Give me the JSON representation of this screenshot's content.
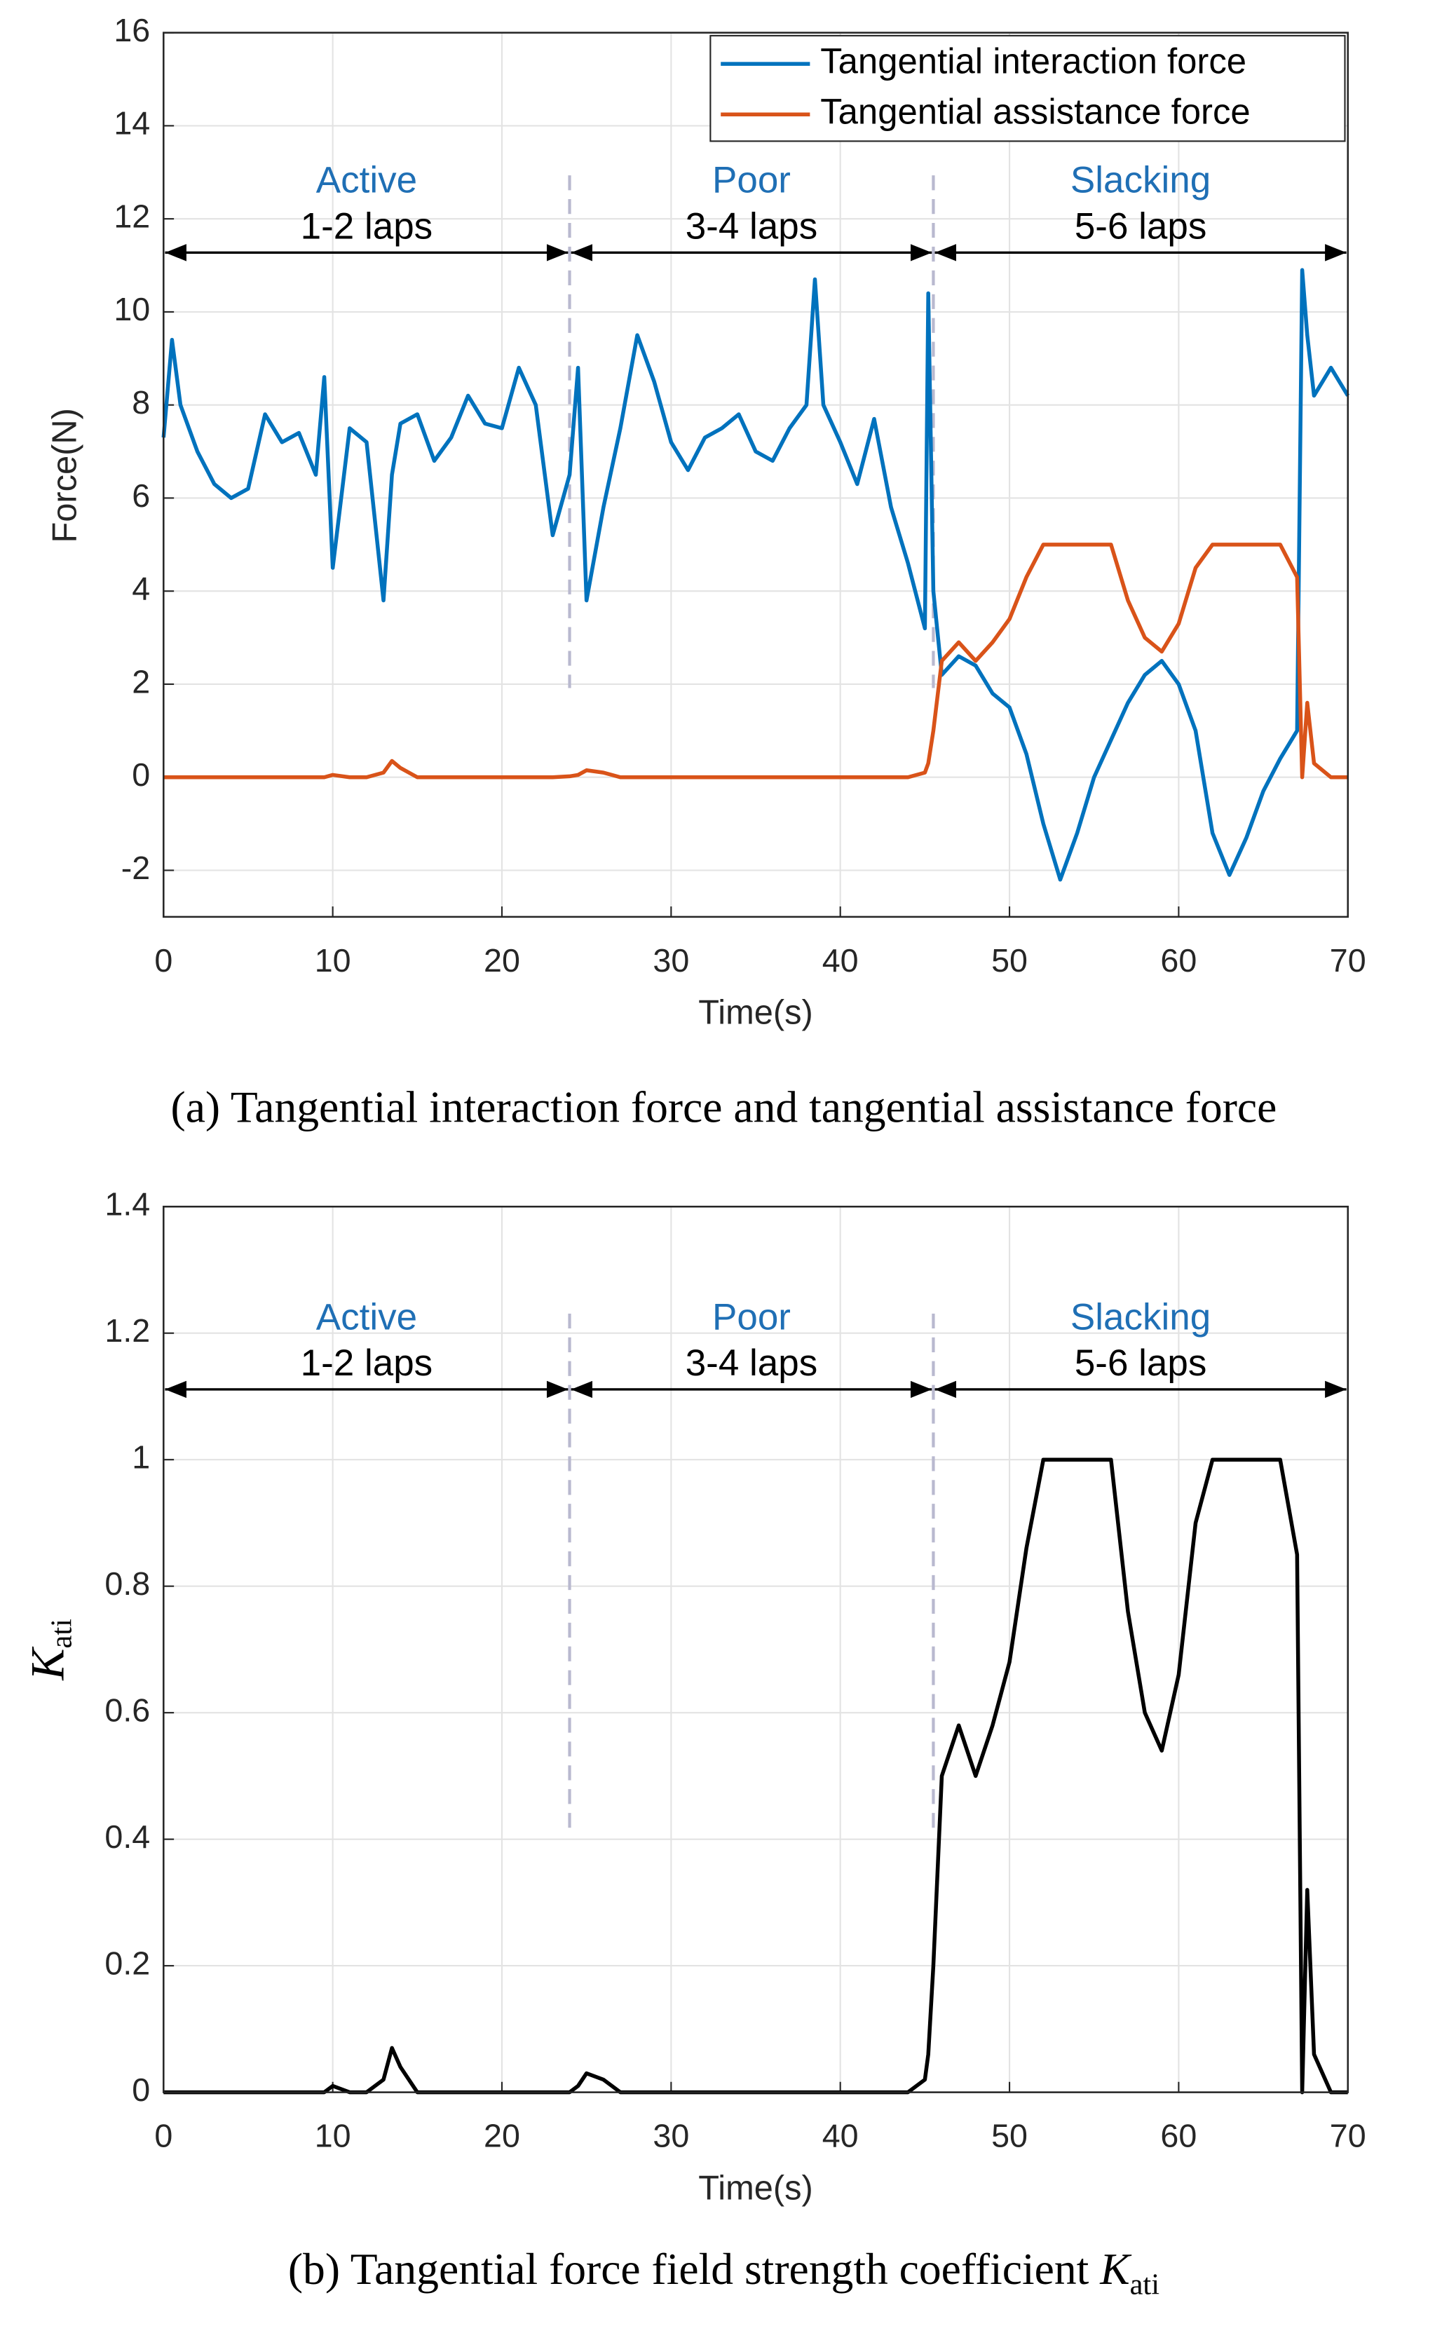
{
  "chart_data": [
    {
      "type": "line",
      "x": [
        0,
        0.5,
        1,
        2,
        3,
        4,
        5,
        6,
        7,
        8,
        9,
        9.5,
        10,
        11,
        12,
        13,
        13.5,
        14,
        15,
        16,
        17,
        18,
        19,
        20,
        21,
        22,
        23,
        24,
        24.5,
        25,
        26,
        27,
        28,
        29,
        30,
        31,
        32,
        33,
        34,
        35,
        36,
        37,
        38,
        38.5,
        39,
        40,
        41,
        42,
        43,
        44,
        45,
        45.2,
        45.5,
        46,
        47,
        48,
        49,
        50,
        51,
        52,
        53,
        54,
        55,
        56,
        57,
        58,
        59,
        60,
        61,
        62,
        63,
        64,
        65,
        66,
        67,
        67.3,
        67.6,
        68,
        69,
        70
      ],
      "series": [
        {
          "name": "Tangential interaction force",
          "color": "#0072bd",
          "values": [
            7.3,
            9.4,
            8.0,
            7.0,
            6.3,
            6.0,
            6.2,
            7.8,
            7.2,
            7.4,
            6.5,
            8.6,
            4.5,
            7.5,
            7.2,
            3.8,
            6.5,
            7.6,
            7.8,
            6.8,
            7.3,
            8.2,
            7.6,
            7.5,
            8.8,
            8.0,
            5.2,
            6.5,
            8.8,
            3.8,
            5.8,
            7.5,
            9.5,
            8.5,
            7.2,
            6.6,
            7.3,
            7.5,
            7.8,
            7.0,
            6.8,
            7.5,
            8.0,
            10.7,
            8.0,
            7.2,
            6.3,
            7.7,
            5.8,
            4.6,
            3.2,
            10.4,
            4.0,
            2.2,
            2.6,
            2.4,
            1.8,
            1.5,
            0.5,
            -1.0,
            -2.2,
            -1.2,
            0.0,
            0.8,
            1.6,
            2.2,
            2.5,
            2.0,
            1.0,
            -1.2,
            -2.1,
            -1.3,
            -0.3,
            0.4,
            1.0,
            10.9,
            9.5,
            8.2,
            8.8,
            8.2
          ]
        },
        {
          "name": "Tangential assistance force",
          "color": "#d95319",
          "values": [
            0,
            0,
            0,
            0,
            0,
            0,
            0,
            0,
            0,
            0,
            0,
            0,
            0.05,
            0,
            0,
            0.1,
            0.35,
            0.2,
            0,
            0,
            0,
            0,
            0,
            0,
            0,
            0,
            0,
            0.02,
            0.05,
            0.15,
            0.1,
            0,
            0,
            0,
            0,
            0,
            0,
            0,
            0,
            0,
            0,
            0,
            0,
            0,
            0,
            0,
            0,
            0,
            0,
            0,
            0.1,
            0.3,
            1.0,
            2.5,
            2.9,
            2.5,
            2.9,
            3.4,
            4.3,
            5.0,
            5.0,
            5.0,
            5.0,
            5.0,
            3.8,
            3.0,
            2.7,
            3.3,
            4.5,
            5.0,
            5.0,
            5.0,
            5.0,
            5.0,
            4.3,
            0.0,
            1.6,
            0.3,
            0,
            0
          ]
        }
      ],
      "xlim": [
        0,
        70
      ],
      "xticks": [
        0,
        10,
        20,
        30,
        40,
        50,
        60,
        70
      ],
      "ylim": [
        -3,
        16
      ],
      "yticks": [
        -2,
        0,
        2,
        4,
        6,
        8,
        10,
        12,
        14,
        16
      ],
      "x_label": "Time(s)",
      "y_label": "Force(N)",
      "grid": true,
      "legend": "upper right",
      "phases": [
        {
          "name": "Active",
          "laps": "1-2 laps",
          "start": 0,
          "end": 24
        },
        {
          "name": "Poor",
          "laps": "3-4 laps",
          "start": 24,
          "end": 45.5
        },
        {
          "name": "Slacking",
          "laps": "5-6 laps",
          "start": 45.5,
          "end": 70
        }
      ],
      "caption": "(a) Tangential interaction force and tangential assistance force"
    },
    {
      "type": "line",
      "x": [
        0,
        0.5,
        1,
        2,
        3,
        4,
        5,
        6,
        7,
        8,
        9,
        9.5,
        10,
        11,
        12,
        13,
        13.5,
        14,
        15,
        16,
        17,
        18,
        19,
        20,
        21,
        22,
        23,
        24,
        24.5,
        25,
        26,
        27,
        28,
        29,
        30,
        31,
        32,
        33,
        34,
        35,
        36,
        37,
        38,
        38.5,
        39,
        40,
        41,
        42,
        43,
        44,
        45,
        45.2,
        45.5,
        46,
        47,
        48,
        49,
        50,
        51,
        52,
        53,
        54,
        55,
        56,
        57,
        58,
        59,
        60,
        61,
        62,
        63,
        64,
        65,
        66,
        67,
        67.3,
        67.6,
        68,
        69,
        70
      ],
      "series": [
        {
          "name": "Kati",
          "color": "#000000",
          "values": [
            0,
            0,
            0,
            0,
            0,
            0,
            0,
            0,
            0,
            0,
            0,
            0,
            0.01,
            0,
            0,
            0.02,
            0.07,
            0.04,
            0,
            0,
            0,
            0,
            0,
            0,
            0,
            0,
            0,
            0,
            0.01,
            0.03,
            0.02,
            0,
            0,
            0,
            0,
            0,
            0,
            0,
            0,
            0,
            0,
            0,
            0,
            0,
            0,
            0,
            0,
            0,
            0,
            0,
            0.02,
            0.06,
            0.2,
            0.5,
            0.58,
            0.5,
            0.58,
            0.68,
            0.86,
            1,
            1,
            1,
            1,
            1,
            0.76,
            0.6,
            0.54,
            0.66,
            0.9,
            1,
            1,
            1,
            1,
            1,
            0.85,
            0,
            0.32,
            0.06,
            0,
            0
          ]
        }
      ],
      "xlim": [
        0,
        70
      ],
      "xticks": [
        0,
        10,
        20,
        30,
        40,
        50,
        60,
        70
      ],
      "ylim": [
        0,
        1.4
      ],
      "yticks": [
        0,
        0.2,
        0.4,
        0.6,
        0.8,
        1,
        1.2,
        1.4
      ],
      "x_label": "Time(s)",
      "y_label": "K",
      "y_label_sub": "ati",
      "grid": true,
      "phases": [
        {
          "name": "Active",
          "laps": "1-2 laps",
          "start": 0,
          "end": 24
        },
        {
          "name": "Poor",
          "laps": "3-4 laps",
          "start": 24,
          "end": 45.5
        },
        {
          "name": "Slacking",
          "laps": "5-6 laps",
          "start": 45.5,
          "end": 70
        }
      ],
      "caption": "(b) Tangential force field strength coefficient ",
      "caption_symbol": "K",
      "caption_subscript": "ati"
    }
  ]
}
